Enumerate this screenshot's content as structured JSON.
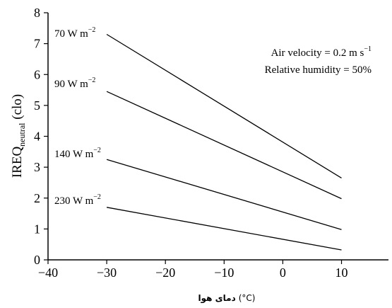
{
  "chart_data": {
    "type": "line",
    "title": "",
    "xlabel": {
      "word": "دمای هوا",
      "unit": "(°C)"
    },
    "ylabel": {
      "main": "IREQ",
      "sub": "neutral",
      "unit": " (clo)"
    },
    "xlim": [
      -40,
      18
    ],
    "ylim": [
      0,
      8
    ],
    "xticks": [
      -40,
      -30,
      -20,
      -10,
      0,
      10
    ],
    "xtick_labels": [
      "−40",
      "−30",
      "−20",
      "−10",
      "0",
      "10"
    ],
    "yticks": [
      0,
      1,
      2,
      3,
      4,
      5,
      6,
      7,
      8
    ],
    "ytick_labels": [
      "0",
      "1",
      "2",
      "3",
      "4",
      "5",
      "6",
      "7",
      "8"
    ],
    "grid": false,
    "series": [
      {
        "name": "70 W m",
        "exp": "−2",
        "x": [
          -30,
          10
        ],
        "y": [
          7.3,
          2.65
        ]
      },
      {
        "name": "90 W m",
        "exp": "−2",
        "x": [
          -30,
          10
        ],
        "y": [
          5.45,
          1.98
        ]
      },
      {
        "name": "140 W m",
        "exp": "−2",
        "x": [
          -30,
          10
        ],
        "y": [
          3.25,
          0.98
        ]
      },
      {
        "name": "230 W m",
        "exp": "−2",
        "x": [
          -30,
          10
        ],
        "y": [
          1.7,
          0.32
        ]
      }
    ],
    "annotations": [
      {
        "text": "Air velocity = 0.2 m s",
        "sup": "−1"
      },
      {
        "text": "Relative humidity = 50%",
        "sup": ""
      }
    ]
  }
}
